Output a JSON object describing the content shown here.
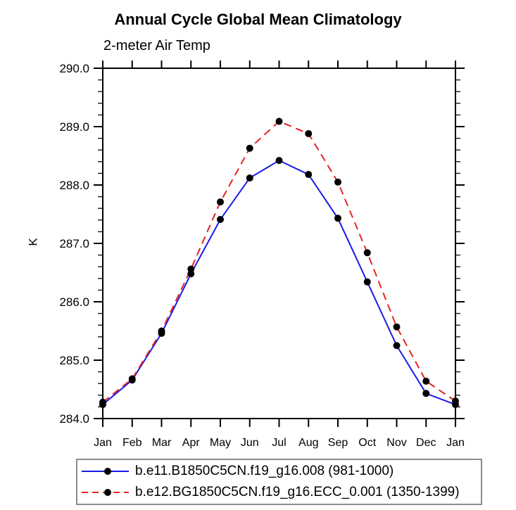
{
  "title": "Annual Cycle Global Mean Climatology",
  "subtitle": "2-meter Air Temp",
  "colors": {
    "series1": "#1a1ae6",
    "series2": "#e62222",
    "marker": "#000000",
    "axis": "#000000",
    "legend_border": "#8c8c8c",
    "background": "#ffffff"
  },
  "chart_data": {
    "type": "line",
    "title": "Annual Cycle Global Mean Climatology",
    "subtitle": "2-meter Air Temp",
    "xlabel": "",
    "ylabel": "K",
    "categories": [
      "Jan",
      "Feb",
      "Mar",
      "Apr",
      "May",
      "Jun",
      "Jul",
      "Aug",
      "Sep",
      "Oct",
      "Nov",
      "Dec",
      "Jan"
    ],
    "ylim": [
      284.0,
      290.0
    ],
    "ytick_labels": [
      "284.0",
      "285.0",
      "286.0",
      "287.0",
      "288.0",
      "289.0",
      "290.0"
    ],
    "y_minor_step": 0.2,
    "grid": false,
    "legend_position": "bottom",
    "marker": "filled-circle",
    "marker_color": "#000000",
    "series": [
      {
        "name": "b.e11.B1850C5CN.f19_g16.008 (981-1000)",
        "color": "#1a1ae6",
        "style": "solid",
        "values": [
          284.24,
          284.66,
          285.46,
          286.48,
          287.41,
          288.12,
          288.42,
          288.18,
          287.43,
          286.34,
          285.25,
          284.43,
          284.24
        ]
      },
      {
        "name": "b.e12.BG1850C5CN.f19_g16.ECC_0.001 (1350-1399)",
        "color": "#e62222",
        "style": "dashed",
        "values": [
          284.28,
          284.68,
          285.5,
          286.56,
          287.71,
          288.63,
          289.09,
          288.88,
          288.05,
          286.84,
          285.57,
          284.64,
          284.3
        ]
      }
    ]
  }
}
